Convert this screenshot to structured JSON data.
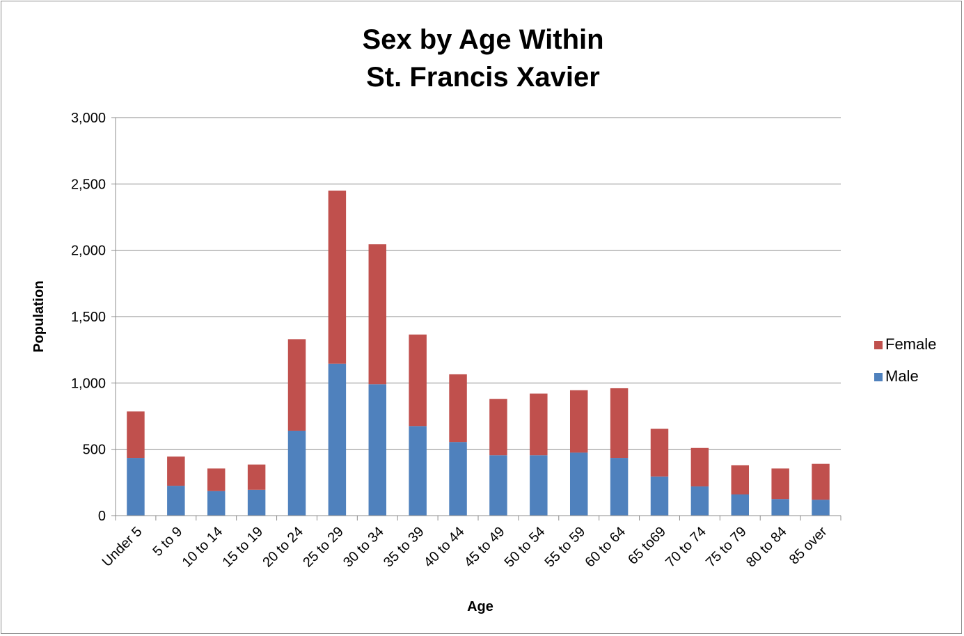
{
  "chart_data": {
    "type": "bar",
    "stacked": true,
    "title": [
      "Sex by Age Within",
      "St. Francis Xavier"
    ],
    "xlabel": "Age",
    "ylabel": "Population",
    "ylim": [
      0,
      3000
    ],
    "yticks": [
      0,
      500,
      1000,
      1500,
      2000,
      2500,
      3000
    ],
    "ytick_labels": [
      "0",
      "500",
      "1,000",
      "1,500",
      "2,000",
      "2,500",
      "3,000"
    ],
    "grid": true,
    "legend_position": "right",
    "categories": [
      "Under 5",
      "5 to 9",
      "10 to 14",
      "15 to 19",
      "20 to 24",
      "25 to 29",
      "30 to 34",
      "35 to 39",
      "40 to 44",
      "45 to 49",
      "50 to 54",
      "55 to 59",
      "60 to 64",
      "65 to69",
      "70 to 74",
      "75 to 79",
      "80 to 84",
      "85 over"
    ],
    "series": [
      {
        "name": "Male",
        "color": "#4f81bd",
        "values": [
          435,
          225,
          185,
          195,
          640,
          1145,
          990,
          675,
          555,
          455,
          455,
          475,
          435,
          295,
          220,
          160,
          125,
          120
        ]
      },
      {
        "name": "Female",
        "color": "#c0504d",
        "values": [
          350,
          220,
          170,
          190,
          690,
          1305,
          1055,
          690,
          510,
          425,
          465,
          470,
          525,
          360,
          290,
          220,
          230,
          270
        ]
      }
    ],
    "legend_order": [
      "Female",
      "Male"
    ]
  }
}
